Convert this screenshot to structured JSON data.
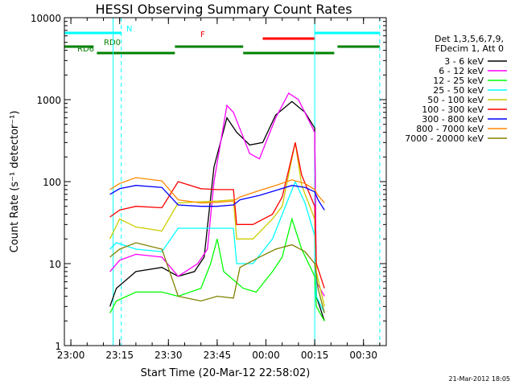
{
  "chart_data": {
    "type": "line",
    "title": "HESSI Observing Summary Count Rates",
    "xlabel": "Start Time (20-Mar-12 22:58:02)",
    "ylabel": "Count Rate (s⁻¹ detector⁻¹)",
    "yscale": "log",
    "ylim": [
      1,
      10000
    ],
    "xlim": [
      "22:58",
      "00:37"
    ],
    "x_ticks": [
      "23:00",
      "23:15",
      "23:30",
      "23:45",
      "00:00",
      "00:15",
      "00:30"
    ],
    "y_ticks": [
      "1",
      "10",
      "100",
      "1000",
      "10000"
    ],
    "footer": "21-Mar-2012 18:05",
    "legend_header": [
      "Det 1,3,5,6,7,9,",
      "FDecim 1, Att 0"
    ],
    "legend_position": "right",
    "series": [
      {
        "name": "3 - 6 keV",
        "color": "#000000",
        "points": [
          [
            "23:12",
            3
          ],
          [
            "23:14",
            5
          ],
          [
            "23:20",
            8
          ],
          [
            "23:28",
            9
          ],
          [
            "23:33",
            7
          ],
          [
            "23:38",
            8
          ],
          [
            "23:41",
            12
          ],
          [
            "23:44",
            150
          ],
          [
            "23:48",
            600
          ],
          [
            "23:51",
            400
          ],
          [
            "23:55",
            280
          ],
          [
            "23:59",
            300
          ],
          [
            "00:03",
            650
          ],
          [
            "00:08",
            950
          ],
          [
            "00:12",
            700
          ],
          [
            "00:15",
            450
          ],
          [
            "00:15.5",
            4
          ],
          [
            "00:18",
            2
          ]
        ]
      },
      {
        "name": "6 - 12 keV",
        "color": "#ff00ff",
        "points": [
          [
            "23:12",
            8
          ],
          [
            "23:15",
            11
          ],
          [
            "23:20",
            13
          ],
          [
            "23:28",
            12
          ],
          [
            "23:33",
            7
          ],
          [
            "23:39",
            10
          ],
          [
            "23:42",
            15
          ],
          [
            "23:44",
            100
          ],
          [
            "23:48",
            850
          ],
          [
            "23:50",
            700
          ],
          [
            "23:55",
            220
          ],
          [
            "23:58",
            190
          ],
          [
            "00:03",
            600
          ],
          [
            "00:07",
            1200
          ],
          [
            "00:10",
            1000
          ],
          [
            "00:15",
            400
          ],
          [
            "00:15.5",
            6
          ],
          [
            "00:18",
            4
          ]
        ]
      },
      {
        "name": "12 - 25 keV",
        "color": "#00ff00",
        "points": [
          [
            "23:12",
            2.5
          ],
          [
            "23:14",
            3.5
          ],
          [
            "23:20",
            4.5
          ],
          [
            "23:28",
            4.5
          ],
          [
            "23:33",
            4
          ],
          [
            "23:40",
            5
          ],
          [
            "23:43",
            10
          ],
          [
            "23:45",
            20
          ],
          [
            "23:47",
            8
          ],
          [
            "23:53",
            5
          ],
          [
            "23:57",
            4.5
          ],
          [
            "00:02",
            8
          ],
          [
            "00:05",
            12
          ],
          [
            "00:08",
            35
          ],
          [
            "00:11",
            15
          ],
          [
            "00:15",
            7
          ],
          [
            "00:15.5",
            3
          ],
          [
            "00:18",
            2
          ]
        ]
      },
      {
        "name": "25 - 50 keV",
        "color": "#00ffff",
        "points": [
          [
            "23:12",
            15
          ],
          [
            "23:14",
            18
          ],
          [
            "23:20",
            15
          ],
          [
            "23:28",
            14
          ],
          [
            "23:33",
            27
          ],
          [
            "23:45",
            27
          ],
          [
            "23:50",
            27
          ],
          [
            "23:51",
            10
          ],
          [
            "23:56",
            10
          ],
          [
            "00:02",
            20
          ],
          [
            "00:06",
            50
          ],
          [
            "00:09",
            100
          ],
          [
            "00:12",
            55
          ],
          [
            "00:15",
            22
          ],
          [
            "00:15.5",
            4
          ],
          [
            "00:18",
            2.5
          ]
        ]
      },
      {
        "name": "50 - 100 keV",
        "color": "#cccc00",
        "points": [
          [
            "23:12",
            20
          ],
          [
            "23:15",
            35
          ],
          [
            "23:20",
            28
          ],
          [
            "23:28",
            25
          ],
          [
            "23:33",
            55
          ],
          [
            "23:45",
            58
          ],
          [
            "23:50",
            60
          ],
          [
            "23:51",
            20
          ],
          [
            "23:56",
            20
          ],
          [
            "00:02",
            35
          ],
          [
            "00:05",
            50
          ],
          [
            "00:09",
            300
          ],
          [
            "00:11",
            90
          ],
          [
            "00:15",
            35
          ],
          [
            "00:15.5",
            8
          ],
          [
            "00:18",
            3
          ]
        ]
      },
      {
        "name": "100 - 300 keV",
        "color": "#ff0000",
        "points": [
          [
            "23:12",
            37
          ],
          [
            "23:15",
            45
          ],
          [
            "23:20",
            50
          ],
          [
            "23:28",
            48
          ],
          [
            "23:33",
            100
          ],
          [
            "23:40",
            82
          ],
          [
            "23:45",
            80
          ],
          [
            "23:50",
            80
          ],
          [
            "23:51",
            30
          ],
          [
            "23:56",
            30
          ],
          [
            "00:02",
            40
          ],
          [
            "00:05",
            65
          ],
          [
            "00:09",
            300
          ],
          [
            "00:11",
            120
          ],
          [
            "00:15",
            50
          ],
          [
            "00:15.5",
            10
          ],
          [
            "00:18",
            5
          ]
        ]
      },
      {
        "name": "300 - 800 keV",
        "color": "#0000ff",
        "points": [
          [
            "23:12",
            70
          ],
          [
            "23:15",
            82
          ],
          [
            "23:20",
            90
          ],
          [
            "23:28",
            85
          ],
          [
            "23:33",
            52
          ],
          [
            "23:40",
            50
          ],
          [
            "23:45",
            50
          ],
          [
            "23:50",
            52
          ],
          [
            "23:52",
            60
          ],
          [
            "23:58",
            68
          ],
          [
            "00:03",
            78
          ],
          [
            "00:08",
            90
          ],
          [
            "00:12",
            85
          ],
          [
            "00:15",
            75
          ],
          [
            "00:16",
            60
          ],
          [
            "00:18",
            45
          ]
        ]
      },
      {
        "name": "800 - 7000 keV",
        "color": "#ff8800",
        "points": [
          [
            "23:12",
            80
          ],
          [
            "23:15",
            95
          ],
          [
            "23:20",
            112
          ],
          [
            "23:28",
            102
          ],
          [
            "23:33",
            60
          ],
          [
            "23:40",
            55
          ],
          [
            "23:45",
            56
          ],
          [
            "23:50",
            58
          ],
          [
            "23:52",
            65
          ],
          [
            "23:58",
            78
          ],
          [
            "00:03",
            90
          ],
          [
            "00:08",
            105
          ],
          [
            "00:12",
            95
          ],
          [
            "00:15",
            80
          ],
          [
            "00:16",
            68
          ],
          [
            "00:18",
            55
          ]
        ]
      },
      {
        "name": "7000 - 20000 keV",
        "color": "#808000",
        "points": [
          [
            "23:12",
            12
          ],
          [
            "23:15",
            15
          ],
          [
            "23:20",
            18
          ],
          [
            "23:28",
            15
          ],
          [
            "23:33",
            4
          ],
          [
            "23:40",
            3.5
          ],
          [
            "23:45",
            4
          ],
          [
            "23:50",
            3.8
          ],
          [
            "23:52",
            9
          ],
          [
            "23:58",
            12
          ],
          [
            "00:03",
            15
          ],
          [
            "00:08",
            17
          ],
          [
            "00:12",
            14
          ],
          [
            "00:15",
            10
          ],
          [
            "00:16",
            5
          ],
          [
            "00:18",
            2.5
          ]
        ]
      }
    ],
    "flags": [
      {
        "label": "N",
        "color": "#00ffff",
        "segments": [
          [
            "22:58",
            "23:15.5"
          ],
          [
            "00:15",
            "00:35"
          ]
        ]
      },
      {
        "label": "F",
        "color": "#ff0000",
        "segments": [
          [
            "23:59",
            "00:15"
          ]
        ]
      },
      {
        "label": "RD0",
        "color": "#008000",
        "segments": [
          [
            "22:58",
            "23:07"
          ],
          [
            "23:32",
            "23:53"
          ],
          [
            "00:22",
            "00:35"
          ]
        ]
      },
      {
        "label": "RD6",
        "color": "#008000",
        "segments": [
          [
            "23:08",
            "23:32"
          ],
          [
            "23:53",
            "00:21"
          ]
        ]
      }
    ],
    "vertical_markers": [
      {
        "time": "22:58",
        "style": "solid",
        "color": "#00ffff"
      },
      {
        "time": "23:13",
        "style": "solid",
        "color": "#00ffff"
      },
      {
        "time": "23:15.5",
        "style": "dashed",
        "color": "#00ffff"
      },
      {
        "time": "00:15",
        "style": "solid",
        "color": "#00ffff"
      },
      {
        "time": "00:35",
        "style": "dashed",
        "color": "#00ffff"
      }
    ]
  }
}
